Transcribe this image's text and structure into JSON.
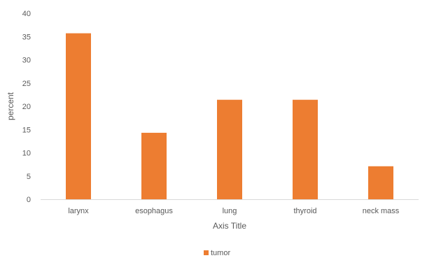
{
  "chart_data": {
    "type": "bar",
    "categories": [
      "larynx",
      "esophagus",
      "lung",
      "thyroid",
      "neck mass"
    ],
    "series": [
      {
        "name": "tumor",
        "values": [
          35.7,
          14.3,
          21.4,
          21.4,
          7.1
        ]
      }
    ],
    "xlabel": "Axis Title",
    "ylabel": "percent",
    "ylim": [
      0,
      40
    ],
    "yticks": [
      0,
      5,
      10,
      15,
      20,
      25,
      30,
      35,
      40
    ],
    "grid": false,
    "legend": "bottom",
    "colors": {
      "tumor": "#ED7D31",
      "axis": "#D9D9D9",
      "text": "#595959"
    }
  }
}
